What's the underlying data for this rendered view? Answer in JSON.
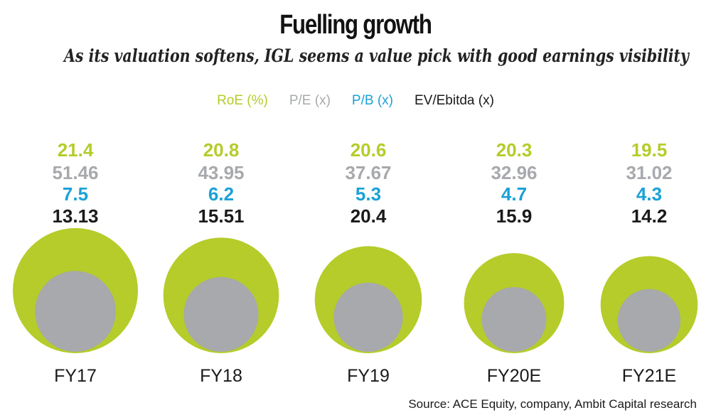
{
  "chart_data": {
    "type": "bubble",
    "title": "Fuelling growth",
    "subtitle": "As its valuation softens, IGL seems a value pick with good earnings visibility",
    "categories": [
      "FY17",
      "FY18",
      "FY19",
      "FY20E",
      "FY21E"
    ],
    "series": [
      {
        "name": "RoE (%)",
        "color": "#b5cc2a",
        "values": [
          21.4,
          20.8,
          20.6,
          20.3,
          19.5
        ]
      },
      {
        "name": "P/E (x)",
        "color": "#a7a9ac",
        "values": [
          51.46,
          43.95,
          37.67,
          32.96,
          31.02
        ]
      },
      {
        "name": "P/B (x)",
        "color": "#1ba1d6",
        "values": [
          7.5,
          6.2,
          5.3,
          4.7,
          4.3
        ]
      },
      {
        "name": "EV/Ebitda (x)",
        "color": "#1a1a1a",
        "values": [
          13.13,
          15.51,
          20.4,
          15.9,
          14.2
        ]
      }
    ],
    "value_labels": [
      [
        "21.4",
        "51.46",
        "7.5",
        "13.13"
      ],
      [
        "20.8",
        "43.95",
        "6.2",
        "15.51"
      ],
      [
        "20.6",
        "37.67",
        "5.3",
        "20.4"
      ],
      [
        "20.3",
        "32.96",
        "4.7",
        "15.9"
      ],
      [
        "19.5",
        "31.02",
        "4.3",
        "14.2"
      ]
    ],
    "legend_position": "top"
  },
  "colors": {
    "outer_circle": "#b5cc2a",
    "inner_circle": "#a7a9ac"
  },
  "source": "Source: ACE Equity, company, Ambit Capital research"
}
